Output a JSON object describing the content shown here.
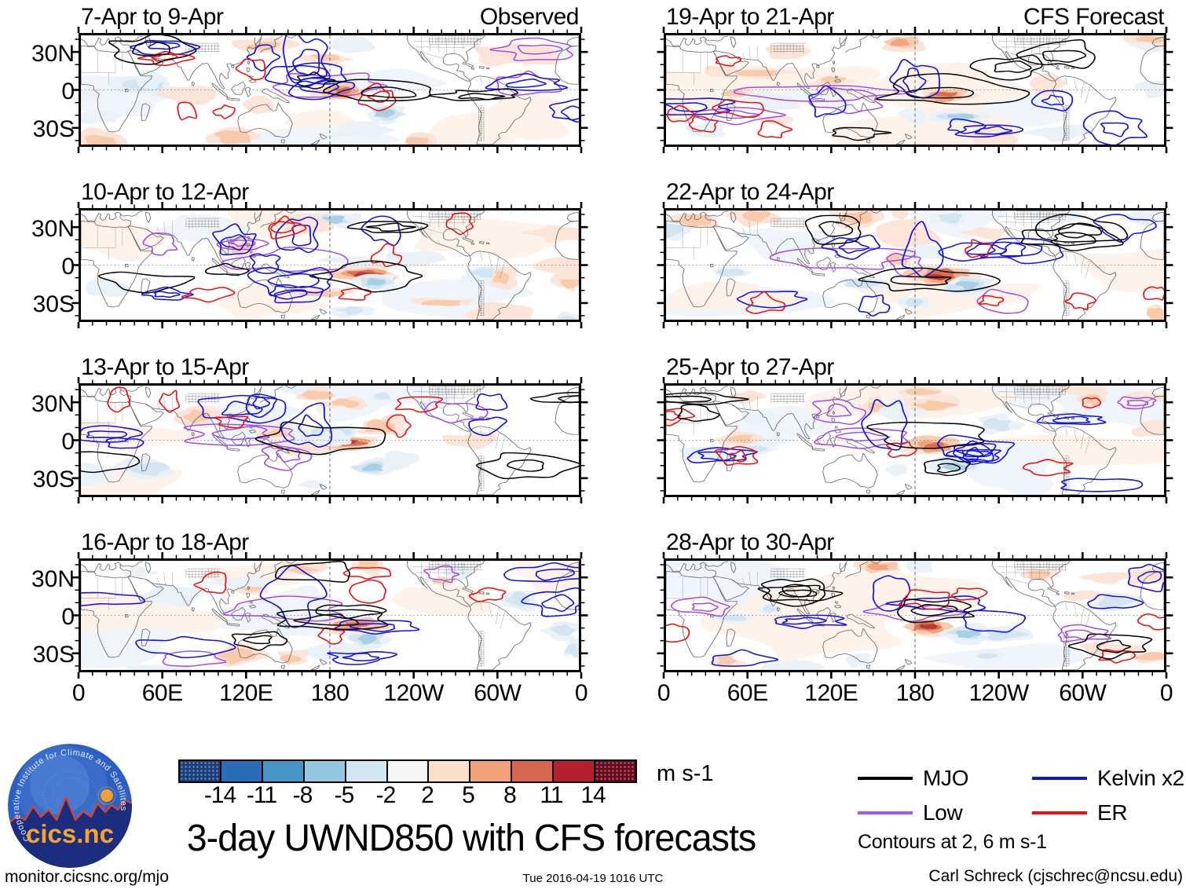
{
  "title": "3-day UWND850 with CFS forecasts",
  "columns": [
    {
      "corner_label": "Observed",
      "panels": [
        {
          "title": "7-Apr to 9-Apr"
        },
        {
          "title": "10-Apr to 12-Apr"
        },
        {
          "title": "13-Apr to 15-Apr"
        },
        {
          "title": "16-Apr to 18-Apr"
        }
      ]
    },
    {
      "corner_label": "CFS Forecast",
      "panels": [
        {
          "title": "19-Apr to 21-Apr"
        },
        {
          "title": "22-Apr to 24-Apr"
        },
        {
          "title": "25-Apr to 27-Apr"
        },
        {
          "title": "28-Apr to 30-Apr"
        }
      ]
    }
  ],
  "axis": {
    "y_tick_labels": [
      "30N",
      "0",
      "30S"
    ],
    "x_tick_labels": [
      "0",
      "60E",
      "120E",
      "180",
      "120W",
      "60W",
      "0"
    ]
  },
  "colorbar": {
    "tick_labels": [
      "-14",
      "-11",
      "-8",
      "-5",
      "-2",
      "2",
      "5",
      "8",
      "11",
      "14"
    ],
    "colors": [
      "#1a3f7e",
      "#2a6cb5",
      "#4796c6",
      "#94c6df",
      "#d3e6f1",
      "#f7f7f7",
      "#fbdfca",
      "#f2a077",
      "#d66650",
      "#b51f2e",
      "#6b0a1f"
    ],
    "unit": "m s-1"
  },
  "legend": {
    "items": [
      {
        "label": "MJO",
        "color": "#000000"
      },
      {
        "label": "Kelvin x2",
        "color": "#1212e0"
      },
      {
        "label": "Low",
        "color": "#a957ea"
      },
      {
        "label": "ER",
        "color": "#ef1010"
      }
    ],
    "note": "Contours at 2, 6 m s-1"
  },
  "footer": {
    "left": "monitor.cicsnc.org/mjo",
    "center": "Tue 2016-04-19 1016 UTC",
    "right": "Carl Schreck (cjschrec@ncsu.edu)"
  },
  "logo": {
    "ring_text": "Cooperative Institute for Climate and Satellites",
    "name": "cics.nc"
  }
}
